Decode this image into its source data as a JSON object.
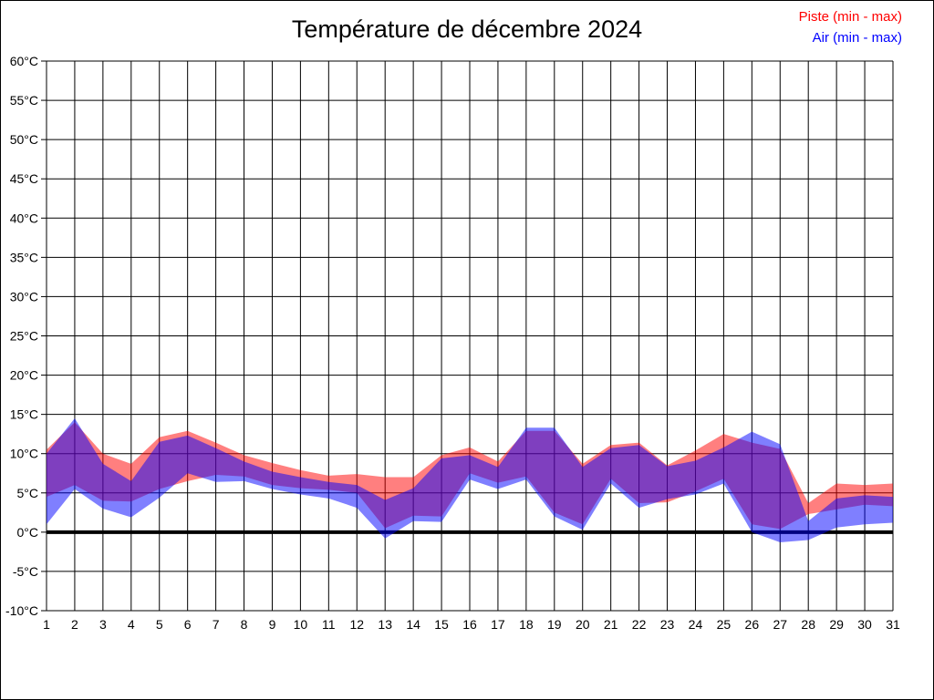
{
  "title": "Température de décembre 2024",
  "legend": {
    "piste_label": "Piste (min - max)",
    "air_label": "Air (min - max)"
  },
  "colors": {
    "piste": "#ff0000",
    "air": "#0000ff",
    "grid": "#000000",
    "zero_line": "#000000",
    "background": "#ffffff",
    "text": "#000000"
  },
  "y_axis": {
    "tick_suffix": "°C",
    "min": -10,
    "max": 60,
    "step": 5
  },
  "x_axis": {
    "tick_labels": [
      "1",
      "2",
      "3",
      "4",
      "5",
      "6",
      "7",
      "8",
      "9",
      "10",
      "11",
      "12",
      "13",
      "14",
      "15",
      "16",
      "17",
      "18",
      "19",
      "20",
      "21",
      "22",
      "23",
      "24",
      "25",
      "26",
      "27",
      "28",
      "29",
      "30",
      "31"
    ]
  },
  "chart_data": {
    "type": "area",
    "title": "Température de décembre 2024",
    "x": [
      1,
      2,
      3,
      4,
      5,
      6,
      7,
      8,
      9,
      10,
      11,
      12,
      13,
      14,
      15,
      16,
      17,
      18,
      19,
      20,
      21,
      22,
      23,
      24,
      25,
      26,
      27,
      28,
      29,
      30,
      31
    ],
    "ylim": [
      -10,
      60
    ],
    "ytick_step": 5,
    "grid": true,
    "legend_position": "top-right",
    "zero_line": true,
    "series": [
      {
        "name": "Piste (min - max)",
        "color": "#ff0000",
        "opacity": 0.5,
        "min": [
          4.5,
          6.0,
          4.0,
          3.9,
          5.5,
          6.5,
          7.3,
          7.1,
          6.0,
          5.6,
          5.4,
          5.0,
          0.5,
          2.1,
          2.0,
          7.5,
          6.3,
          7.1,
          2.5,
          1.0,
          6.8,
          3.7,
          3.8,
          5.2,
          6.8,
          1.0,
          0.4,
          2.3,
          2.9,
          3.5,
          3.3
        ],
        "max": [
          10.5,
          14.0,
          10.0,
          8.7,
          12.1,
          12.9,
          11.4,
          9.8,
          8.8,
          7.9,
          7.2,
          7.4,
          7.0,
          7.0,
          9.8,
          10.8,
          9.0,
          12.9,
          12.9,
          8.7,
          11.1,
          11.4,
          8.5,
          10.4,
          12.5,
          11.4,
          10.6,
          3.7,
          6.2,
          6.0,
          6.2
        ]
      },
      {
        "name": "Air (min - max)",
        "color": "#0000ff",
        "opacity": 0.5,
        "min": [
          1.0,
          5.5,
          3.0,
          1.9,
          4.4,
          7.5,
          6.4,
          6.5,
          5.5,
          4.8,
          4.3,
          3.1,
          -0.8,
          1.4,
          1.3,
          6.7,
          5.5,
          6.7,
          2.0,
          0.3,
          6.2,
          3.1,
          4.2,
          4.8,
          6.2,
          0.0,
          -1.3,
          -1.0,
          0.6,
          1.0,
          1.2
        ],
        "max": [
          10.0,
          14.5,
          8.7,
          6.5,
          11.5,
          12.3,
          10.7,
          9.0,
          7.7,
          7.0,
          6.4,
          6.0,
          4.1,
          5.6,
          9.4,
          9.8,
          8.3,
          13.3,
          13.3,
          8.3,
          10.7,
          11.1,
          8.4,
          9.1,
          10.8,
          12.8,
          11.2,
          1.4,
          4.3,
          4.7,
          4.5
        ]
      }
    ]
  }
}
